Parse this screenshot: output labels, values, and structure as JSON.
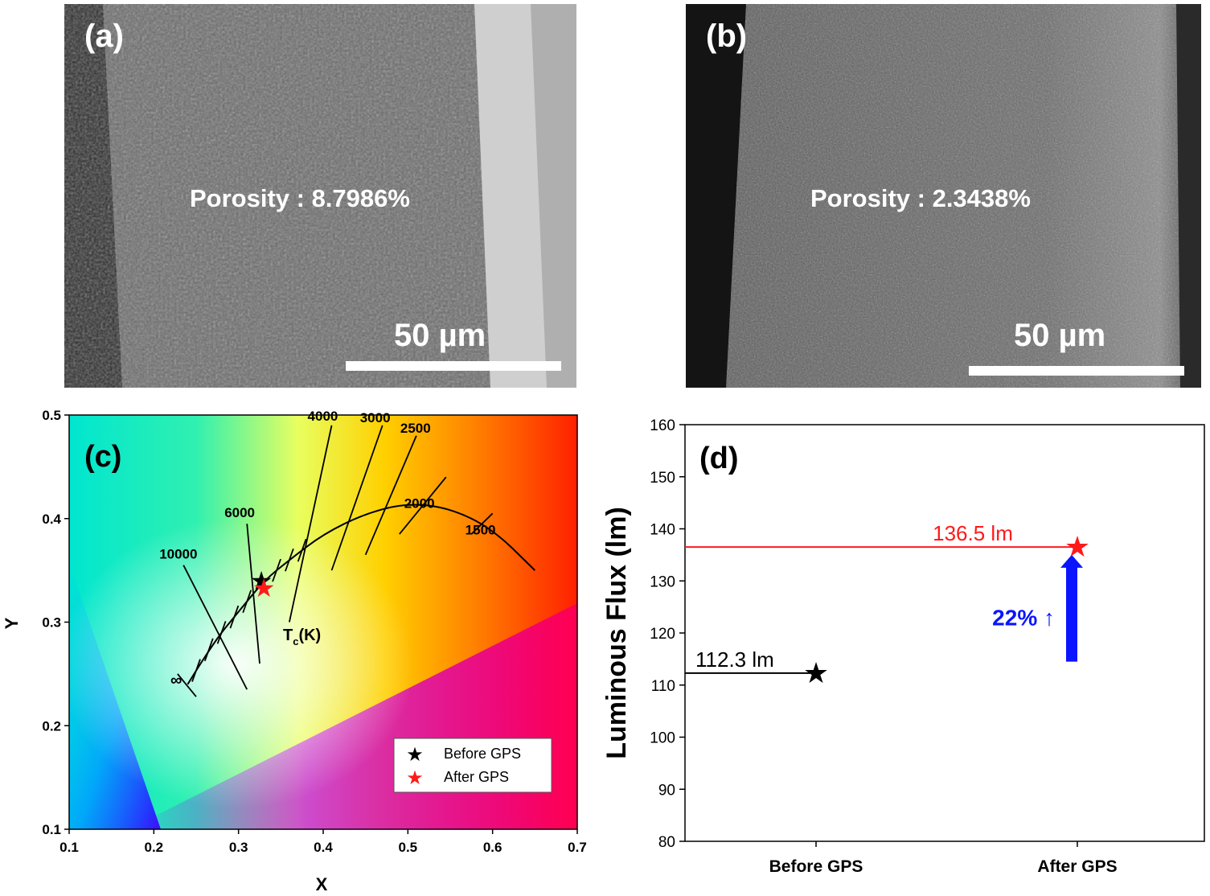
{
  "panels": {
    "a": {
      "label": "(a)",
      "porosity_text": "Porosity : 8.7986%",
      "scale_text": "50 µm"
    },
    "b": {
      "label": "(b)",
      "porosity_text": "Porosity : 2.3438%",
      "scale_text": "50 µm"
    }
  },
  "chart_data": [
    {
      "type": "scatter",
      "panel_label": "(c)",
      "xlabel": "X",
      "ylabel": "Y",
      "xlim": [
        0.1,
        0.7
      ],
      "ylim": [
        0.1,
        0.5
      ],
      "xticks": [
        "0.1",
        "0.2",
        "0.3",
        "0.4",
        "0.5",
        "0.6",
        "0.7"
      ],
      "yticks": [
        "0.1",
        "0.2",
        "0.3",
        "0.4",
        "0.5"
      ],
      "planckian_locus": [
        [
          0.24,
          0.24
        ],
        [
          0.27,
          0.28
        ],
        [
          0.3,
          0.31
        ],
        [
          0.33,
          0.34
        ],
        [
          0.36,
          0.36
        ],
        [
          0.4,
          0.385
        ],
        [
          0.45,
          0.405
        ],
        [
          0.5,
          0.415
        ],
        [
          0.55,
          0.41
        ],
        [
          0.6,
          0.39
        ],
        [
          0.65,
          0.35
        ]
      ],
      "isotherms": [
        {
          "label": "10000",
          "from": [
            0.235,
            0.355
          ],
          "to": [
            0.31,
            0.235
          ]
        },
        {
          "label": "6000",
          "from": [
            0.31,
            0.395
          ],
          "to": [
            0.325,
            0.26
          ]
        },
        {
          "label": "4000",
          "from": [
            0.41,
            0.49
          ],
          "to": [
            0.36,
            0.3
          ]
        },
        {
          "label": "3000",
          "from": [
            0.47,
            0.49
          ],
          "to": [
            0.41,
            0.35
          ]
        },
        {
          "label": "2500",
          "from": [
            0.51,
            0.48
          ],
          "to": [
            0.45,
            0.365
          ]
        },
        {
          "label": "2000",
          "from": [
            0.545,
            0.44
          ],
          "to": [
            0.49,
            0.385
          ]
        },
        {
          "label": "1500",
          "from": [
            0.6,
            0.405
          ],
          "to": [
            0.575,
            0.385
          ]
        }
      ],
      "infinity_label": "∞",
      "tc_label": "T",
      "tc_sub": "c",
      "tc_unit": "(K)",
      "series": [
        {
          "name": "Before GPS",
          "x": 0.327,
          "y": 0.34,
          "color": "#000000"
        },
        {
          "name": "After GPS",
          "x": 0.33,
          "y": 0.333,
          "color": "#ff1a1a"
        }
      ],
      "legend_position": "bottom-right"
    },
    {
      "type": "scatter",
      "panel_label": "(d)",
      "ylabel": "Luminous Flux (lm)",
      "ylim": [
        80,
        160
      ],
      "yticks": [
        "80",
        "90",
        "100",
        "110",
        "120",
        "130",
        "140",
        "150",
        "160"
      ],
      "categories": [
        "Before GPS",
        "After GPS"
      ],
      "values": [
        112.3,
        136.5
      ],
      "colors": [
        "#000000",
        "#ff1a1a"
      ],
      "value_labels": [
        "112.3 lm",
        "136.5 lm"
      ],
      "increase_label": "22% ↑",
      "arrow_color": "#0a14ff"
    }
  ]
}
